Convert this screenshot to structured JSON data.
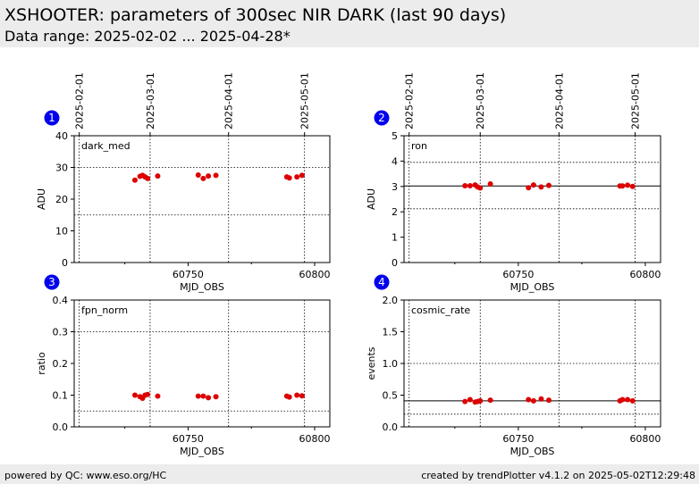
{
  "header": {
    "title": "XSHOOTER: parameters of 300sec NIR DARK (last 90 days)",
    "subtitle": "Data range: 2025-02-02 ... 2025-04-28*"
  },
  "footer": {
    "left": "powered by QC: www.eso.org/HC",
    "right": "created by trendPlotter v4.1.2 on 2025-05-02T12:29:48"
  },
  "colors": {
    "points": "#dd0000",
    "badge": "#0000ee"
  },
  "chart_data": [
    {
      "type": "scatter",
      "panel": "1",
      "label": "dark_med",
      "xlabel": "MJD_OBS",
      "ylabel": "ADU",
      "xlim": [
        60705,
        60806
      ],
      "ylim": [
        0,
        40
      ],
      "yticks": [
        "0",
        "10",
        "20",
        "30",
        "40"
      ],
      "xticks": [
        "60750",
        "60800"
      ],
      "dates": [
        "2025-02-01",
        "2025-03-01",
        "2025-04-01",
        "2025-05-01"
      ],
      "hlines_solid": [],
      "hlines_dotted": [
        15,
        30
      ],
      "x": [
        60729,
        60731,
        60732,
        60733,
        60734,
        60738,
        60754,
        60756,
        60758,
        60761,
        60789,
        60790,
        60793,
        60795
      ],
      "y": [
        26,
        27.2,
        27.5,
        27,
        26.5,
        27.3,
        27.6,
        26.5,
        27.3,
        27.5,
        27,
        26.7,
        27,
        27.5
      ]
    },
    {
      "type": "scatter",
      "panel": "2",
      "label": "ron",
      "xlabel": "MJD_OBS",
      "ylabel": "ADU",
      "xlim": [
        60705,
        60806
      ],
      "ylim": [
        0,
        5
      ],
      "yticks": [
        "0",
        "1",
        "2",
        "3",
        "4",
        "5"
      ],
      "xticks": [
        "60750",
        "60800"
      ],
      "dates": [
        "2025-02-01",
        "2025-03-01",
        "2025-04-01",
        "2025-05-01"
      ],
      "hlines_solid": [
        3.02
      ],
      "hlines_dotted": [
        2.12,
        3.95
      ],
      "x": [
        60729,
        60731,
        60733,
        60734,
        60735,
        60739,
        60754,
        60756,
        60759,
        60762,
        60790,
        60791,
        60793,
        60795
      ],
      "y": [
        3.03,
        3.03,
        3.06,
        2.98,
        2.94,
        3.1,
        2.95,
        3.06,
        2.98,
        3.04,
        3.02,
        3.02,
        3.05,
        3
      ]
    },
    {
      "type": "scatter",
      "panel": "3",
      "label": "fpn_norm",
      "xlabel": "MJD_OBS",
      "ylabel": "ratio",
      "xlim": [
        60705,
        60806
      ],
      "ylim": [
        0,
        0.4
      ],
      "yticks": [
        "0.0",
        "0.1",
        "0.2",
        "0.3",
        "0.4"
      ],
      "xticks": [
        "60750",
        "60800"
      ],
      "dates": [],
      "hlines_solid": [],
      "hlines_dotted": [
        0.05,
        0.3
      ],
      "x": [
        60729,
        60731,
        60732,
        60733,
        60734,
        60738,
        60754,
        60756,
        60758,
        60761,
        60789,
        60790,
        60793,
        60795
      ],
      "y": [
        0.1,
        0.095,
        0.09,
        0.1,
        0.102,
        0.097,
        0.097,
        0.097,
        0.092,
        0.095,
        0.097,
        0.094,
        0.1,
        0.098
      ]
    },
    {
      "type": "scatter",
      "panel": "4",
      "label": "cosmic_rate",
      "xlabel": "MJD_OBS",
      "ylabel": "events",
      "xlim": [
        60705,
        60806
      ],
      "ylim": [
        0,
        2
      ],
      "yticks": [
        "0.0",
        "0.5",
        "1.0",
        "1.5",
        "2.0"
      ],
      "xticks": [
        "60750",
        "60800"
      ],
      "dates": [],
      "hlines_solid": [
        0.41
      ],
      "hlines_dotted": [
        0.2,
        1.0
      ],
      "x": [
        60729,
        60731,
        60733,
        60734,
        60735,
        60739,
        60754,
        60756,
        60759,
        60762,
        60790,
        60791,
        60793,
        60795
      ],
      "y": [
        0.4,
        0.43,
        0.39,
        0.4,
        0.41,
        0.42,
        0.43,
        0.41,
        0.44,
        0.42,
        0.41,
        0.43,
        0.43,
        0.41
      ]
    }
  ]
}
